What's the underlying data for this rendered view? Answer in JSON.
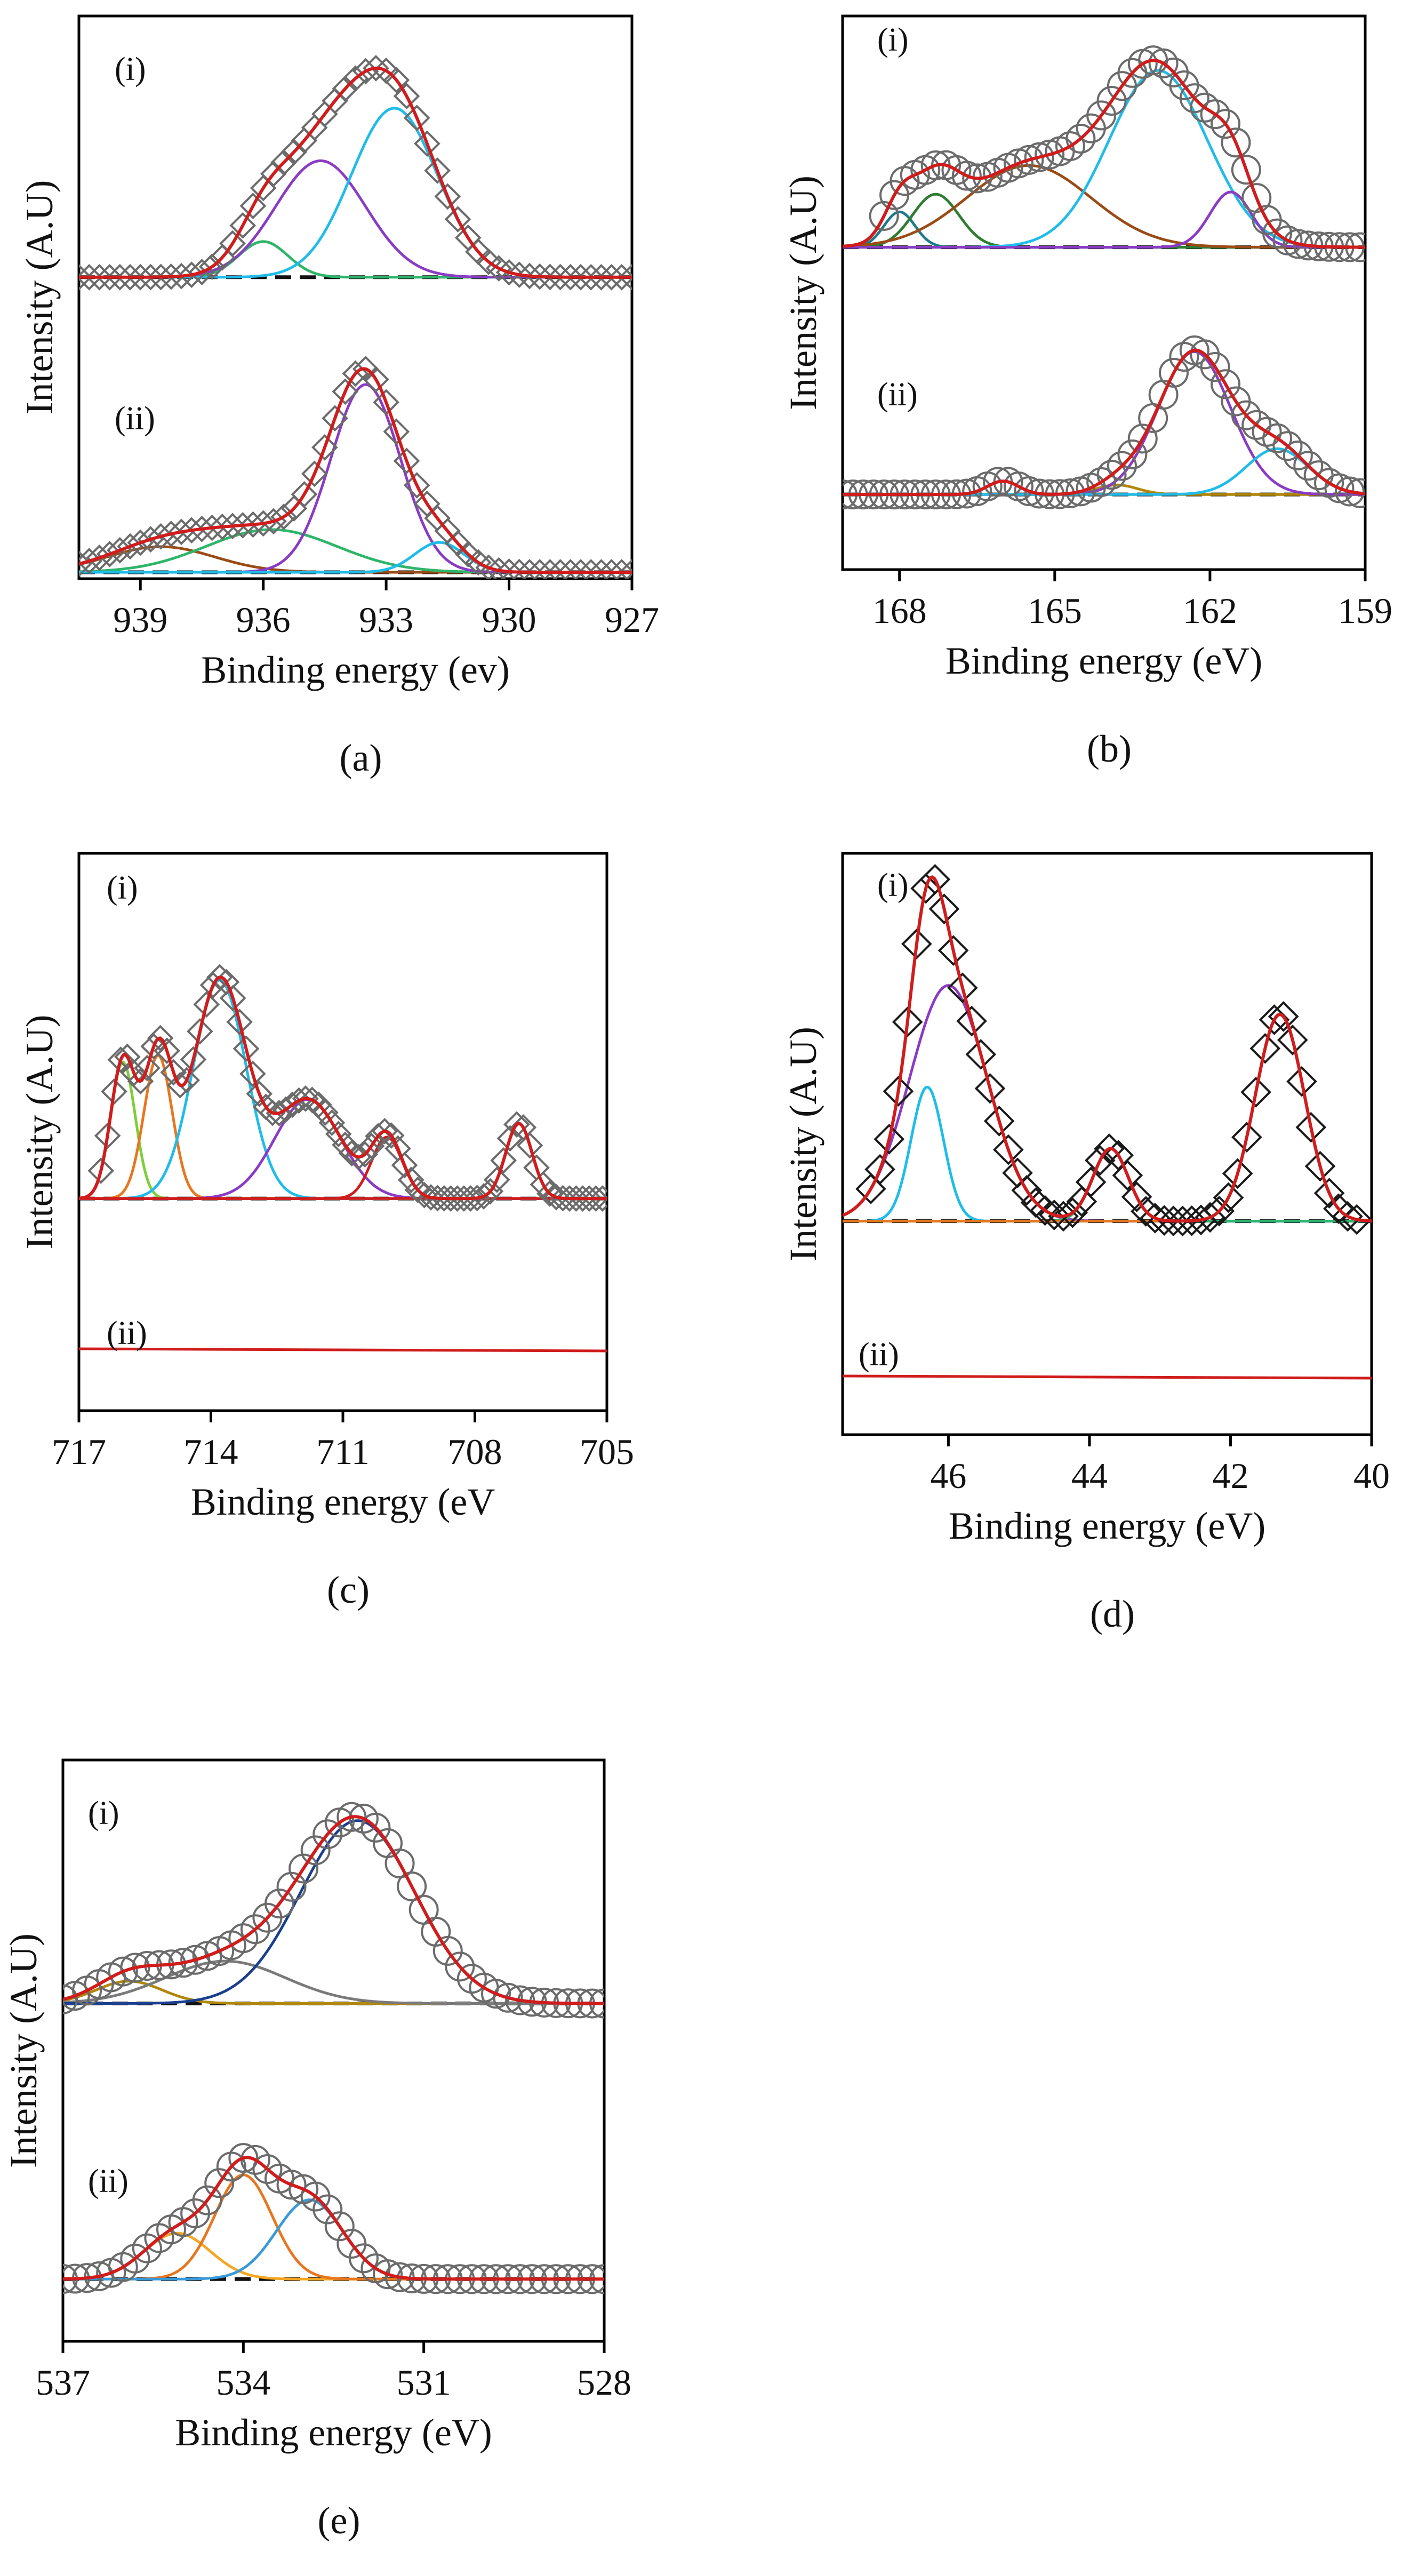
{
  "figure": {
    "description_labels": [
      "(a)",
      "(b)",
      "(c)",
      "(d)",
      "(e)"
    ]
  },
  "colors": {
    "axis": "#000000",
    "envelope": "#d01c1c",
    "baseline": "#111111",
    "marker_stroke": "#6b6b6b",
    "marker_stroke_dark": "#1a1a1a",
    "cyan": "#1fbcea",
    "purple": "#8a3bc4",
    "green": "#2fb56b",
    "dark_green": "#2e7d32",
    "brown": "#9a4b16",
    "teal": "#1f7a8c",
    "orange": "#e8761e",
    "lime": "#7ccf3a",
    "blue": "#1f6fb4",
    "gray": "#7a7a7a",
    "olive": "#b0870a",
    "light_orange": "#f5a623",
    "sky": "#3a9ad9",
    "yellow": "#f2c200",
    "navy": "#1a3f8f"
  },
  "chart_data": [
    {
      "id": "a",
      "type": "line",
      "panel_label": "(a)",
      "xlabel": "Binding energy (ev)",
      "ylabel": "Intensity (A.U)",
      "xlim": [
        940.5,
        927
      ],
      "ticks": [
        939,
        936,
        933,
        930,
        927
      ],
      "tick_labels": [
        "939",
        "936",
        "933",
        "930",
        "927"
      ],
      "marker": "diamond",
      "traces": [
        {
          "label": "(i)",
          "baseline": 0.1,
          "ymax": 1.15,
          "markers": {
            "x_start": 940.5,
            "x_end": 927,
            "step": 0.25
          },
          "components": [
            {
              "color_key": "green",
              "center": 936.0,
              "height": 0.19,
              "width": 0.6
            },
            {
              "color_key": "purple",
              "center": 934.6,
              "height": 0.62,
              "width": 1.1
            },
            {
              "color_key": "cyan",
              "center": 932.8,
              "height": 0.9,
              "width": 1.05
            }
          ]
        },
        {
          "label": "(ii)",
          "baseline": 0.03,
          "ymax": 1.15,
          "markers": {
            "x_start": 940.5,
            "x_end": 927,
            "step": 0.25
          },
          "components": [
            {
              "color_key": "brown",
              "center": 938.5,
              "height": 0.12,
              "width": 1.3
            },
            {
              "color_key": "green",
              "center": 935.8,
              "height": 0.2,
              "width": 1.6
            },
            {
              "color_key": "purple",
              "center": 933.5,
              "height": 0.88,
              "width": 0.85
            },
            {
              "color_key": "cyan",
              "center": 931.7,
              "height": 0.14,
              "width": 0.6
            }
          ]
        }
      ]
    },
    {
      "id": "b",
      "type": "line",
      "panel_label": "(b)",
      "xlabel": "Binding energy (eV)",
      "ylabel": "Intensity (A.U)",
      "xlim": [
        169.1,
        159
      ],
      "ticks": [
        168,
        165,
        162,
        159
      ],
      "tick_labels": [
        "168",
        "165",
        "162",
        "159"
      ],
      "marker": "circle",
      "traces": [
        {
          "label": "(i)",
          "baseline": 0.1,
          "ymax": 1.05,
          "markers": {
            "x_start": 168.3,
            "x_end": 159,
            "step": 0.2
          },
          "components": [
            {
              "color_key": "teal",
              "center": 168.0,
              "height": 0.16,
              "width": 0.3
            },
            {
              "color_key": "dark_green",
              "center": 167.3,
              "height": 0.24,
              "width": 0.45
            },
            {
              "color_key": "brown",
              "center": 165.5,
              "height": 0.37,
              "width": 1.2
            },
            {
              "color_key": "cyan",
              "center": 163.0,
              "height": 0.8,
              "width": 0.95
            },
            {
              "color_key": "purple",
              "center": 161.6,
              "height": 0.25,
              "width": 0.4
            }
          ]
        },
        {
          "label": "(ii)",
          "baseline": 0.05,
          "ymax": 1.05,
          "markers": {
            "x_start": 169.1,
            "x_end": 159,
            "step": 0.2
          },
          "components": [
            {
              "color_key": "brown",
              "center": 166.0,
              "height": 0.07,
              "width": 0.3
            },
            {
              "color_key": "olive",
              "center": 163.8,
              "height": 0.05,
              "width": 0.4
            },
            {
              "color_key": "purple",
              "center": 162.3,
              "height": 0.75,
              "width": 0.7
            },
            {
              "color_key": "cyan",
              "center": 160.7,
              "height": 0.24,
              "width": 0.6
            }
          ]
        }
      ]
    },
    {
      "id": "c",
      "type": "line",
      "panel_label": "(c)",
      "xlabel": "Binding energy (eV",
      "ylabel": "Intensity (A.U)",
      "xlim": [
        717,
        705
      ],
      "ticks": [
        717,
        714,
        711,
        708,
        705
      ],
      "tick_labels": [
        "717",
        "714",
        "711",
        "708",
        "705"
      ],
      "marker": "diamond",
      "traces": [
        {
          "label": "(i)",
          "baseline": 0.27,
          "ymax": 1.0,
          "markers": {
            "x_start": 716.5,
            "x_end": 705,
            "step": 0.15
          },
          "components": [
            {
              "color_key": "lime",
              "center": 716.0,
              "height": 0.4,
              "width": 0.28
            },
            {
              "color_key": "orange",
              "center": 715.2,
              "height": 0.42,
              "width": 0.32
            },
            {
              "color_key": "cyan",
              "center": 713.8,
              "height": 0.64,
              "width": 0.6
            },
            {
              "color_key": "purple",
              "center": 711.8,
              "height": 0.29,
              "width": 0.75
            },
            {
              "color_key": "envelope",
              "center": 710.0,
              "height": 0.18,
              "width": 0.35
            },
            {
              "color_key": "envelope",
              "center": 707.0,
              "height": 0.22,
              "width": 0.3
            }
          ]
        },
        {
          "label": "(ii)",
          "baseline": 0.1,
          "flat": true,
          "markers": null,
          "components": []
        }
      ]
    },
    {
      "id": "d",
      "type": "line",
      "panel_label": "(d)",
      "xlabel": "Binding energy (eV)",
      "ylabel": "Intensity (A.U)",
      "xlim": [
        47.5,
        40
      ],
      "ticks": [
        46,
        44,
        42,
        40
      ],
      "tick_labels": [
        "46",
        "44",
        "42",
        "40"
      ],
      "marker": "diamond-open",
      "traces": [
        {
          "label": "(i)",
          "baseline": 0.28,
          "ymax": 1.0,
          "markers": {
            "x_start": 47.1,
            "x_end": 40.2,
            "step": 0.13
          },
          "components": [
            {
              "color_key": "cyan",
              "center": 46.3,
              "height": 0.37,
              "width": 0.23
            },
            {
              "color_key": "purple",
              "center": 46.0,
              "height": 0.65,
              "width": 0.55
            },
            {
              "color_key": "green",
              "center": 43.7,
              "height": 0.2,
              "width": 0.25
            },
            {
              "color_key": "orange",
              "center": 41.3,
              "height": 0.57,
              "width": 0.35
            }
          ]
        },
        {
          "label": "(ii)",
          "baseline": 0.1,
          "flat": true,
          "markers": null,
          "components": []
        }
      ]
    },
    {
      "id": "e",
      "type": "line",
      "panel_label": "(e)",
      "xlabel": "Binding energy (eV)",
      "ylabel": "Intensity (A.U)",
      "xlim": [
        537,
        528
      ],
      "ticks": [
        537,
        534,
        531,
        528
      ],
      "tick_labels": [
        "537",
        "534",
        "531",
        "528"
      ],
      "marker": "circle",
      "traces": [
        {
          "label": "(i)",
          "baseline": 0.08,
          "ymax": 1.1,
          "markers": {
            "x_start": 537,
            "x_end": 528,
            "step": 0.2
          },
          "components": [
            {
              "color_key": "olive",
              "center": 535.9,
              "height": 0.1,
              "width": 0.55
            },
            {
              "color_key": "gray",
              "center": 534.3,
              "height": 0.19,
              "width": 1.0
            },
            {
              "color_key": "navy",
              "center": 532.1,
              "height": 0.82,
              "width": 0.95
            }
          ]
        },
        {
          "label": "(ii)",
          "baseline": 0.03,
          "ymax": 1.1,
          "markers": {
            "x_start": 537,
            "x_end": 528,
            "step": 0.2
          },
          "components": [
            {
              "color_key": "light_orange",
              "center": 535.1,
              "height": 0.22,
              "width": 0.55
            },
            {
              "color_key": "orange",
              "center": 534.0,
              "height": 0.5,
              "width": 0.48
            },
            {
              "color_key": "sky",
              "center": 532.9,
              "height": 0.38,
              "width": 0.55
            }
          ]
        }
      ]
    }
  ]
}
